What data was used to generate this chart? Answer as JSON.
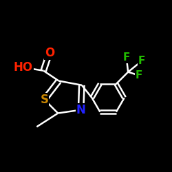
{
  "bg_color": "#000000",
  "atom_colors": {
    "O": "#ff2200",
    "N": "#2222ff",
    "S": "#cc8800",
    "F": "#22bb00"
  },
  "bond_color": "#ffffff",
  "bond_width": 1.8,
  "figsize": [
    2.5,
    2.5
  ],
  "dpi": 100,
  "font_size": 12,
  "font_size_small": 11
}
